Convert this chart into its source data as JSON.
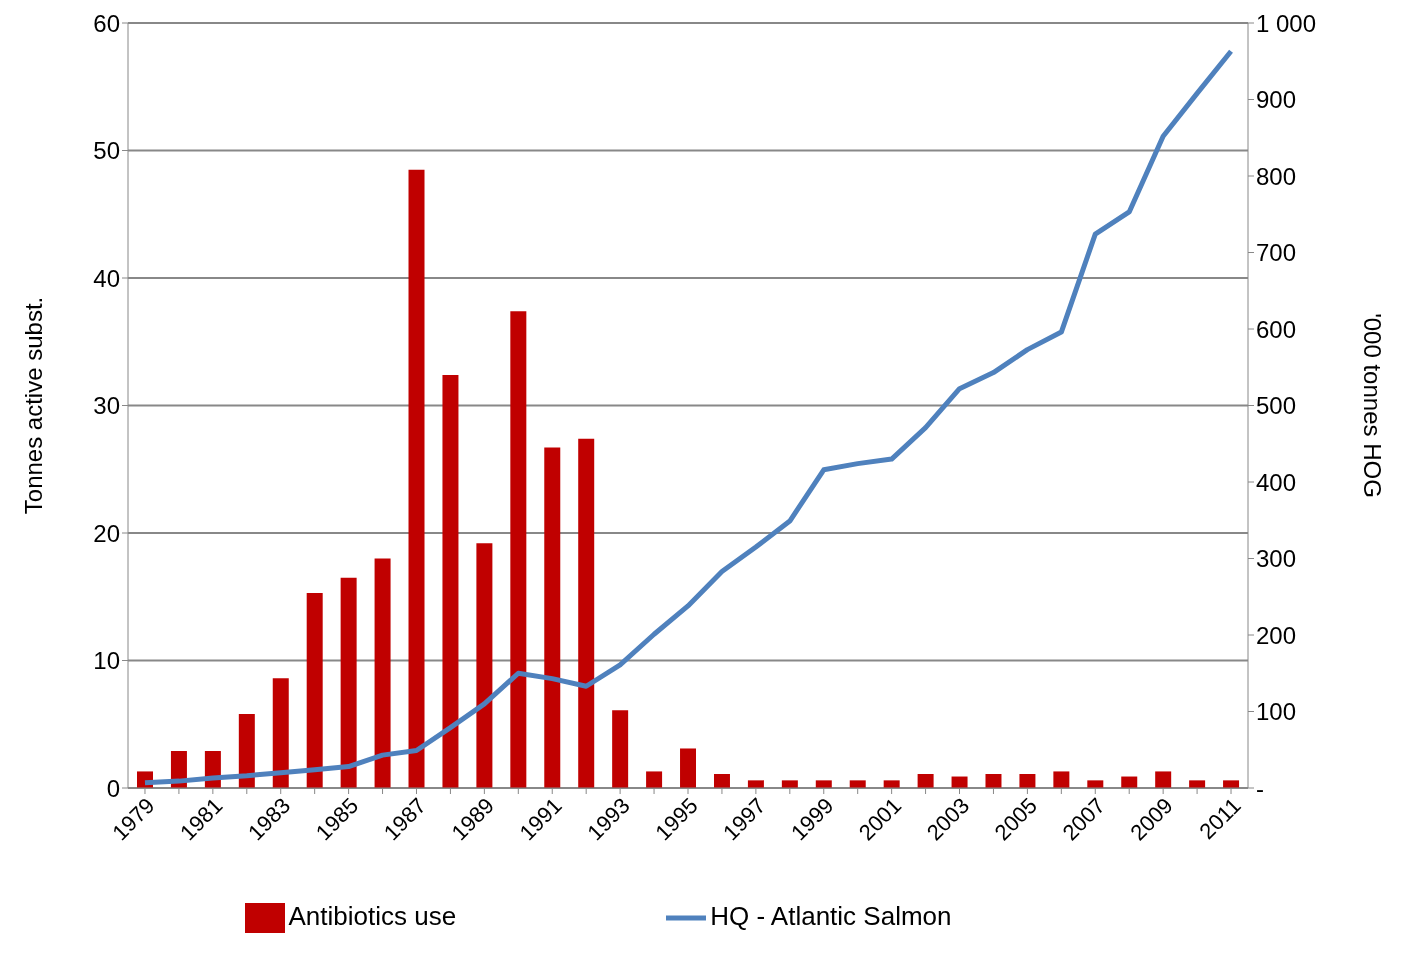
{
  "chart_data": {
    "type": "bar",
    "ylabel": "Tonnes active subst.",
    "y2label": "'000 tonnes HOG",
    "categories": [
      "1979",
      null,
      "1981",
      null,
      "1983",
      null,
      "1985",
      null,
      "1987",
      null,
      "1989",
      null,
      "1991",
      null,
      "1993",
      null,
      "1995",
      null,
      "1997",
      null,
      "1999",
      null,
      "2001",
      null,
      "2003",
      null,
      "2005",
      null,
      "2007",
      null,
      "2009",
      null,
      "2011"
    ],
    "series": [
      {
        "name": "Antibiotics use",
        "color": "#c00000",
        "values": [
          1.3,
          2.9,
          2.9,
          5.8,
          8.6,
          15.3,
          16.5,
          18.0,
          48.5,
          32.4,
          19.2,
          37.4,
          26.7,
          27.4,
          6.1,
          1.3,
          3.1,
          1.1,
          0.6,
          0.6,
          0.6,
          0.6,
          0.6,
          1.1,
          0.9,
          1.1,
          1.1,
          1.3,
          0.6,
          0.9,
          1.3,
          0.6,
          0.6
        ]
      },
      {
        "name": "HQ - Atlantic Salmon",
        "type": "line",
        "axis": "y2",
        "color": "#4f81bd",
        "values": [
          7,
          9,
          13,
          16,
          20,
          24,
          28,
          43,
          49,
          79,
          110,
          150,
          143,
          133,
          161,
          201,
          238,
          283,
          315,
          349,
          416,
          424,
          430,
          471,
          522,
          543,
          573,
          596,
          724,
          753,
          852,
          908,
          963
        ]
      }
    ],
    "ylim": [
      0,
      60
    ],
    "yticks": [
      0,
      10,
      20,
      30,
      40,
      50,
      60
    ],
    "y2lim": [
      0,
      1000
    ],
    "y2ticks": [
      {
        "value": 0,
        "label": "-"
      },
      100,
      200,
      300,
      400,
      500,
      600,
      700,
      800,
      900,
      {
        "value": 1000,
        "label": "1 000"
      }
    ],
    "grid": "y",
    "legend": "bottom",
    "marker": "none",
    "line_style": "solid"
  }
}
